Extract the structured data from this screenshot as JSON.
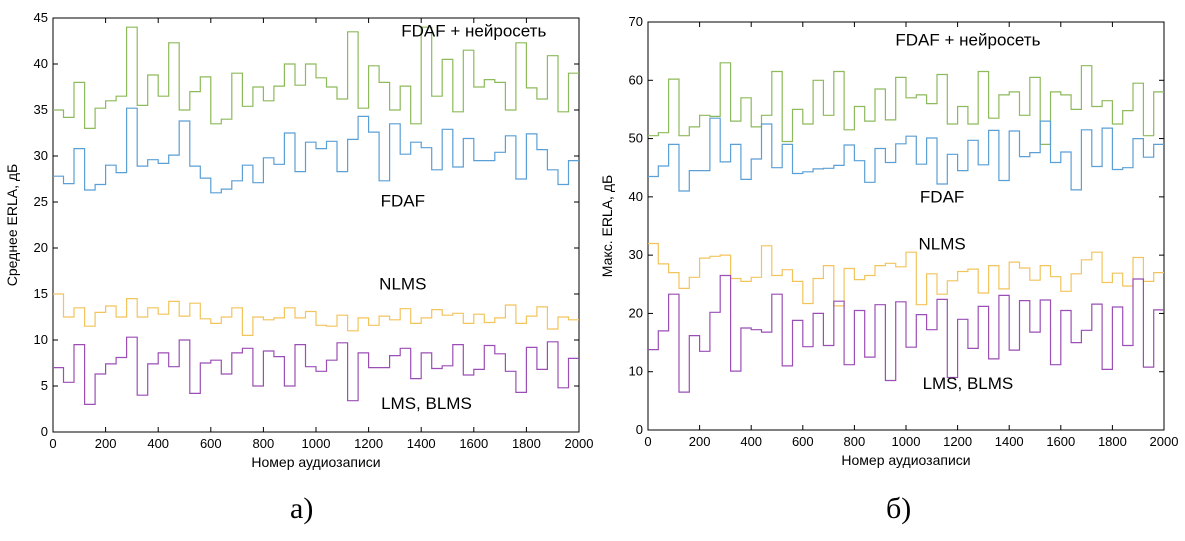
{
  "chart_data": [
    {
      "type": "line",
      "panel_label": "а)",
      "xlabel": "Номер аудиозаписи",
      "ylabel": "Среднее ERLA, дБ",
      "xlim": [
        0,
        2000
      ],
      "ylim": [
        0,
        45
      ],
      "xticks": [
        0,
        200,
        400,
        600,
        800,
        1000,
        1200,
        1400,
        1600,
        1800,
        2000
      ],
      "yticks": [
        0,
        5,
        10,
        15,
        20,
        25,
        30,
        35,
        40,
        45
      ],
      "grid": false,
      "annotations": [
        {
          "text": "FDAF + нейросеть",
          "x": 1600,
          "y": 43
        },
        {
          "text": "FDAF",
          "x": 1330,
          "y": 24.5
        },
        {
          "text": "NLMS",
          "x": 1330,
          "y": 15.5
        },
        {
          "text": "LMS, BLMS",
          "x": 1420,
          "y": 2.5
        }
      ],
      "series": [
        {
          "color": "#8dba5a",
          "x": [
            0,
            40,
            80,
            120,
            160,
            200,
            240,
            280,
            320,
            360,
            400,
            440,
            480,
            520,
            560,
            600,
            640,
            680,
            720,
            760,
            800,
            840,
            880,
            920,
            960,
            1000,
            1040,
            1080,
            1120,
            1160,
            1200,
            1240,
            1280,
            1320,
            1360,
            1400,
            1440,
            1480,
            1520,
            1560,
            1600,
            1640,
            1680,
            1720,
            1760,
            1800,
            1840,
            1880,
            1920,
            1960
          ],
          "values": [
            35,
            34.2,
            38,
            33,
            35.2,
            36,
            36.5,
            44,
            35.5,
            38.8,
            36.5,
            42.3,
            35,
            37,
            38.6,
            33.5,
            34,
            39,
            35.4,
            37.5,
            36,
            37.6,
            40,
            37.7,
            40,
            38.5,
            37.5,
            36.2,
            43.5,
            35.2,
            39.8,
            38,
            35,
            37.6,
            33.5,
            44,
            36.5,
            40.5,
            34.8,
            41.5,
            37.5,
            38.3,
            38,
            35,
            42.3,
            37.4,
            36.2,
            40.9,
            34.8,
            39
          ]
        },
        {
          "color": "#5a9fd6",
          "x": [
            0,
            40,
            80,
            120,
            160,
            200,
            240,
            280,
            320,
            360,
            400,
            440,
            480,
            520,
            560,
            600,
            640,
            680,
            720,
            760,
            800,
            840,
            880,
            920,
            960,
            1000,
            1040,
            1080,
            1120,
            1160,
            1200,
            1240,
            1280,
            1320,
            1360,
            1400,
            1440,
            1480,
            1520,
            1560,
            1600,
            1640,
            1680,
            1720,
            1760,
            1800,
            1840,
            1880,
            1920,
            1960
          ],
          "values": [
            27.8,
            27,
            30.8,
            26.3,
            26.9,
            29,
            28.2,
            35.2,
            28.9,
            29.6,
            29.2,
            30.1,
            33.8,
            28.9,
            27.6,
            26,
            26.4,
            27.3,
            29,
            27.1,
            29.8,
            29.1,
            32.5,
            28.3,
            31.5,
            30.8,
            31.6,
            28.3,
            31.8,
            34.3,
            32.6,
            27.3,
            33.5,
            30.2,
            31.5,
            30.9,
            28.5,
            32.9,
            28.8,
            31.9,
            29.5,
            29.5,
            30.4,
            32.2,
            27.5,
            32.4,
            30.7,
            28.5,
            26.9,
            29.5
          ]
        },
        {
          "color": "#f2c45c",
          "x": [
            0,
            40,
            80,
            120,
            160,
            200,
            240,
            280,
            320,
            360,
            400,
            440,
            480,
            520,
            560,
            600,
            640,
            680,
            720,
            760,
            800,
            840,
            880,
            920,
            960,
            1000,
            1040,
            1080,
            1120,
            1160,
            1200,
            1240,
            1280,
            1320,
            1360,
            1400,
            1440,
            1480,
            1520,
            1560,
            1600,
            1640,
            1680,
            1720,
            1760,
            1800,
            1840,
            1880,
            1920,
            1960
          ],
          "values": [
            15,
            12.5,
            13.5,
            11.5,
            13,
            13.7,
            12.5,
            14.5,
            12.5,
            13.5,
            12.8,
            14.2,
            12.6,
            14,
            12.3,
            11.8,
            12.5,
            13.5,
            10.5,
            12.5,
            12.2,
            12.4,
            13.5,
            12.4,
            13.1,
            11.6,
            11.5,
            12.7,
            11,
            12.4,
            11.6,
            12.6,
            12.2,
            13.4,
            11.8,
            12.4,
            13.3,
            12.7,
            12.9,
            11.8,
            12.8,
            11.9,
            12.4,
            13.8,
            11.8,
            12.6,
            13.6,
            11.2,
            12.5,
            12.2
          ]
        },
        {
          "color": "#9b4fb5",
          "x": [
            0,
            40,
            80,
            120,
            160,
            200,
            240,
            280,
            320,
            360,
            400,
            440,
            480,
            520,
            560,
            600,
            640,
            680,
            720,
            760,
            800,
            840,
            880,
            920,
            960,
            1000,
            1040,
            1080,
            1120,
            1160,
            1200,
            1240,
            1280,
            1320,
            1360,
            1400,
            1440,
            1480,
            1520,
            1560,
            1600,
            1640,
            1680,
            1720,
            1760,
            1800,
            1840,
            1880,
            1920,
            1960
          ],
          "values": [
            7,
            5.4,
            9.5,
            3,
            6.3,
            7.4,
            8.1,
            10.3,
            4,
            7.4,
            8.6,
            7.1,
            10,
            4.2,
            7.5,
            7.8,
            6.3,
            8.6,
            9.1,
            5,
            8.8,
            8.2,
            5,
            9.5,
            7.1,
            6.6,
            7.8,
            9.7,
            3.4,
            8.6,
            7,
            7,
            8.3,
            9.1,
            5.8,
            8.6,
            6.9,
            7.2,
            9.5,
            6.2,
            6.8,
            9.4,
            8.5,
            6.6,
            4.3,
            9.2,
            6.8,
            9.8,
            4.8,
            8
          ]
        }
      ]
    },
    {
      "type": "line",
      "panel_label": "б)",
      "xlabel": "Номер аудиозаписи",
      "ylabel": "Макс. ERLA, дБ",
      "xlim": [
        0,
        2000
      ],
      "ylim": [
        0,
        70
      ],
      "xticks": [
        0,
        200,
        400,
        600,
        800,
        1000,
        1200,
        1400,
        1600,
        1800,
        2000
      ],
      "yticks": [
        0,
        10,
        20,
        30,
        40,
        50,
        60,
        70
      ],
      "grid": false,
      "annotations": [
        {
          "text": "FDAF + нейросеть",
          "x": 1240,
          "y": 66
        },
        {
          "text": "FDAF",
          "x": 1140,
          "y": 39
        },
        {
          "text": "NLMS",
          "x": 1140,
          "y": 31
        },
        {
          "text": "LMS, BLMS",
          "x": 1240,
          "y": 7
        }
      ],
      "series": [
        {
          "color": "#8dba5a",
          "x": [
            0,
            40,
            80,
            120,
            160,
            200,
            240,
            280,
            320,
            360,
            400,
            440,
            480,
            520,
            560,
            600,
            640,
            680,
            720,
            760,
            800,
            840,
            880,
            920,
            960,
            1000,
            1040,
            1080,
            1120,
            1160,
            1200,
            1240,
            1280,
            1320,
            1360,
            1400,
            1440,
            1480,
            1520,
            1560,
            1600,
            1640,
            1680,
            1720,
            1760,
            1800,
            1840,
            1880,
            1920,
            1960
          ],
          "values": [
            50.5,
            51,
            60.2,
            50.5,
            52,
            54,
            53.8,
            63,
            53,
            57,
            52,
            54,
            61.5,
            49.5,
            55,
            52.5,
            60,
            54,
            61.5,
            51.5,
            55.5,
            53,
            58.5,
            53.2,
            60.5,
            57,
            57.5,
            56,
            61,
            52.5,
            55.5,
            52.5,
            61.5,
            53.5,
            57.5,
            58,
            54,
            60.5,
            49,
            58,
            57.5,
            55,
            62.5,
            55.5,
            56.5,
            52.5,
            54.8,
            59.5,
            50.5,
            58
          ]
        },
        {
          "color": "#5a9fd6",
          "x": [
            0,
            40,
            80,
            120,
            160,
            200,
            240,
            280,
            320,
            360,
            400,
            440,
            480,
            520,
            560,
            600,
            640,
            680,
            720,
            760,
            800,
            840,
            880,
            920,
            960,
            1000,
            1040,
            1080,
            1120,
            1160,
            1200,
            1240,
            1280,
            1320,
            1360,
            1400,
            1440,
            1480,
            1520,
            1560,
            1600,
            1640,
            1680,
            1720,
            1760,
            1800,
            1840,
            1880,
            1920,
            1960
          ],
          "values": [
            43.5,
            45.3,
            49,
            41,
            44.5,
            44.5,
            53.5,
            46,
            49,
            43,
            46.5,
            52.5,
            45,
            49,
            44,
            44.3,
            44.8,
            44.9,
            45.4,
            48.9,
            46.2,
            42.5,
            48.3,
            45.9,
            49.1,
            50.4,
            45.6,
            50.1,
            42.2,
            47.3,
            44.5,
            49.7,
            45.5,
            51.4,
            42.8,
            51.3,
            46.9,
            47.6,
            53,
            45.9,
            47.7,
            41.2,
            51.5,
            45.2,
            51.8,
            44.7,
            45,
            50,
            46.8,
            49
          ]
        },
        {
          "color": "#f2c45c",
          "x": [
            0,
            40,
            80,
            120,
            160,
            200,
            240,
            280,
            320,
            360,
            400,
            440,
            480,
            520,
            560,
            600,
            640,
            680,
            720,
            760,
            800,
            840,
            880,
            920,
            960,
            1000,
            1040,
            1080,
            1120,
            1160,
            1200,
            1240,
            1280,
            1320,
            1360,
            1400,
            1440,
            1480,
            1520,
            1560,
            1600,
            1640,
            1680,
            1720,
            1760,
            1800,
            1840,
            1880,
            1920,
            1960
          ],
          "values": [
            32,
            28.5,
            27,
            24.3,
            26.2,
            29.5,
            29.8,
            30,
            26,
            25.5,
            26.2,
            31.6,
            26.5,
            27.5,
            25.5,
            21.7,
            26,
            28.2,
            21.3,
            27.7,
            25.8,
            26.5,
            28.2,
            28.6,
            28,
            30.5,
            21.5,
            26.8,
            23.3,
            25.6,
            27.2,
            27.6,
            23.5,
            28.2,
            24.2,
            28.8,
            27.8,
            25.7,
            28.2,
            26.3,
            23.8,
            26.8,
            29.2,
            30.5,
            25.3,
            26.9,
            24.7,
            29.6,
            25.5,
            27
          ]
        },
        {
          "color": "#9b4fb5",
          "x": [
            0,
            40,
            80,
            120,
            160,
            200,
            240,
            280,
            320,
            360,
            400,
            440,
            480,
            520,
            560,
            600,
            640,
            680,
            720,
            760,
            800,
            840,
            880,
            920,
            960,
            1000,
            1040,
            1080,
            1120,
            1160,
            1200,
            1240,
            1280,
            1320,
            1360,
            1400,
            1440,
            1480,
            1520,
            1560,
            1600,
            1640,
            1680,
            1720,
            1760,
            1800,
            1840,
            1880,
            1920,
            1960
          ],
          "values": [
            13.8,
            17,
            23.3,
            6.5,
            16.2,
            13.5,
            20.2,
            26.5,
            10.1,
            17.5,
            17.2,
            16.8,
            23.3,
            11,
            18.8,
            14.3,
            20,
            14.5,
            22.1,
            11.2,
            20.5,
            12.5,
            21.5,
            8.5,
            22,
            14.2,
            19.8,
            17.2,
            22.4,
            9,
            19,
            14,
            21.2,
            12.2,
            23.1,
            13.7,
            22.2,
            16.8,
            22.3,
            11.2,
            20.5,
            15,
            17.1,
            21.6,
            10.4,
            21.1,
            14.5,
            25.9,
            10.8,
            20.6
          ]
        }
      ]
    }
  ],
  "captions": {
    "a": "а)",
    "b": "б)"
  }
}
